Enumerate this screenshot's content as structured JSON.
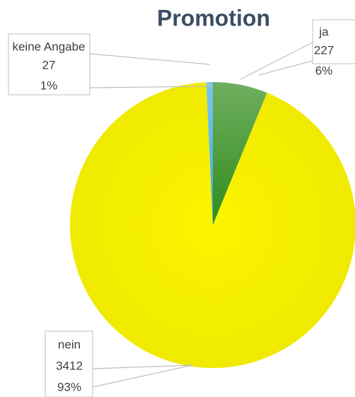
{
  "chart_data": {
    "type": "pie",
    "title": "Promotion",
    "categories": [
      "ja",
      "nein",
      "keine Angabe"
    ],
    "values": [
      227,
      3412,
      27
    ],
    "shares": [
      {
        "value": 6,
        "label": "6%"
      },
      {
        "value": 93,
        "label": "93%"
      },
      {
        "value": 1,
        "label": "1%"
      }
    ],
    "colors": [
      "#4a9a38",
      "#f7f200",
      "#5ab4e6"
    ]
  }
}
